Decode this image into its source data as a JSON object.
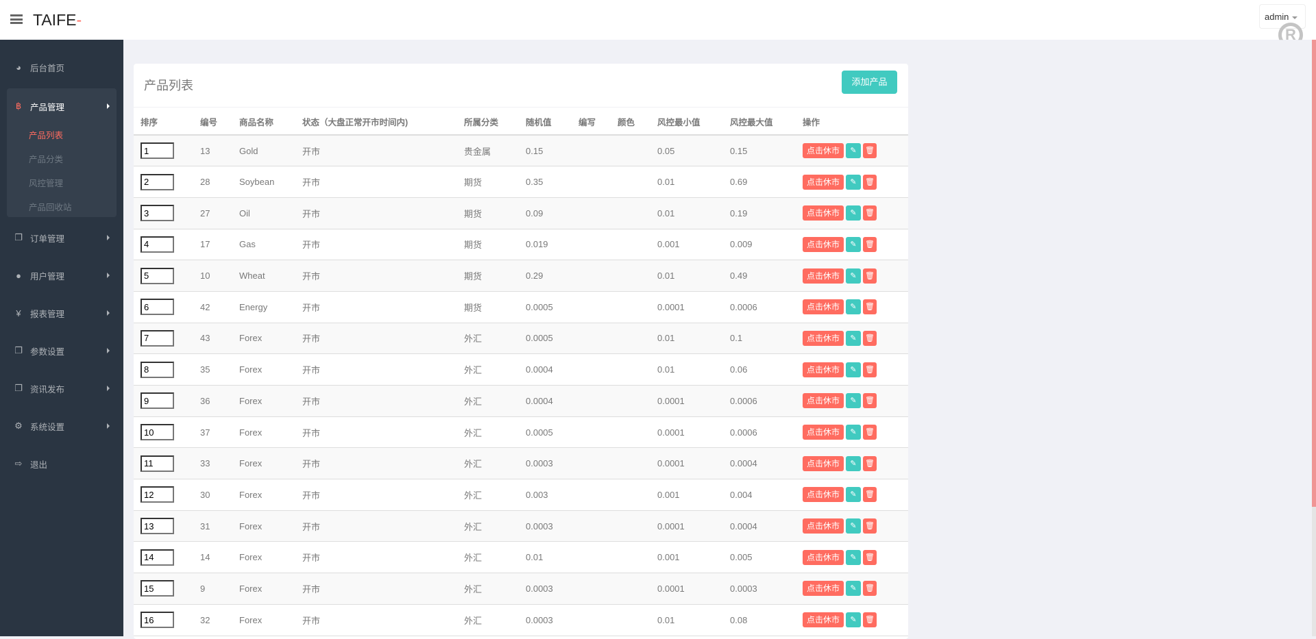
{
  "header": {
    "logo_text": "TAIFE",
    "logo_accent": "-",
    "user": "admin",
    "accent": "#ff6c60"
  },
  "sidebar": {
    "items": [
      {
        "label": "后台首页",
        "icon": "dashboard-icon"
      },
      {
        "label": "产品管理",
        "icon": "bitcoin-icon",
        "expanded": true,
        "children": [
          "产品列表",
          "产品分类",
          "风控管理",
          "产品回收站"
        ],
        "active_child": "产品列表"
      },
      {
        "label": "订单管理",
        "icon": "copy-icon"
      },
      {
        "label": "用户管理",
        "icon": "user-icon"
      },
      {
        "label": "报表管理",
        "icon": "yen-icon"
      },
      {
        "label": "参数设置",
        "icon": "copy-icon"
      },
      {
        "label": "资讯发布",
        "icon": "copy-icon"
      },
      {
        "label": "系统设置",
        "icon": "gears-icon"
      },
      {
        "label": "退出",
        "icon": "sign-out-icon"
      }
    ]
  },
  "main": {
    "title": "产品列表",
    "add_button": "添加产品",
    "columns": [
      "排序",
      "编号",
      "商品名称",
      "状态（大盘正常开市时间内)",
      "所属分类",
      "随机值",
      "编写",
      "颜色",
      "风控最小值",
      "风控最大值",
      "操作"
    ],
    "action_label": "点击休市",
    "rows": [
      [
        "1",
        "13",
        "Gold",
        "开市",
        "贵金属",
        "0.15",
        "",
        "",
        "0.05",
        "0.15"
      ],
      [
        "2",
        "28",
        "Soybean",
        "开市",
        "期货",
        "0.35",
        "",
        "",
        "0.01",
        "0.69"
      ],
      [
        "3",
        "27",
        "Oil",
        "开市",
        "期货",
        "0.09",
        "",
        "",
        "0.01",
        "0.19"
      ],
      [
        "4",
        "17",
        "Gas",
        "开市",
        "期货",
        "0.019",
        "",
        "",
        "0.001",
        "0.009"
      ],
      [
        "5",
        "10",
        "Wheat",
        "开市",
        "期货",
        "0.29",
        "",
        "",
        "0.01",
        "0.49"
      ],
      [
        "6",
        "42",
        "Energy",
        "开市",
        "期货",
        "0.0005",
        "",
        "",
        "0.0001",
        "0.0006"
      ],
      [
        "7",
        "43",
        "Forex",
        "开市",
        "外汇",
        "0.0005",
        "",
        "",
        "0.01",
        "0.1"
      ],
      [
        "8",
        "35",
        "Forex",
        "开市",
        "外汇",
        "0.0004",
        "",
        "",
        "0.01",
        "0.06"
      ],
      [
        "9",
        "36",
        "Forex",
        "开市",
        "外汇",
        "0.0004",
        "",
        "",
        "0.0001",
        "0.0006"
      ],
      [
        "10",
        "37",
        "Forex",
        "开市",
        "外汇",
        "0.0005",
        "",
        "",
        "0.0001",
        "0.0006"
      ],
      [
        "11",
        "33",
        "Forex",
        "开市",
        "外汇",
        "0.0003",
        "",
        "",
        "0.0001",
        "0.0004"
      ],
      [
        "12",
        "30",
        "Forex",
        "开市",
        "外汇",
        "0.003",
        "",
        "",
        "0.001",
        "0.004"
      ],
      [
        "13",
        "31",
        "Forex",
        "开市",
        "外汇",
        "0.0003",
        "",
        "",
        "0.0001",
        "0.0004"
      ],
      [
        "14",
        "14",
        "Forex",
        "开市",
        "外汇",
        "0.01",
        "",
        "",
        "0.001",
        "0.005"
      ],
      [
        "15",
        "9",
        "Forex",
        "开市",
        "外汇",
        "0.0003",
        "",
        "",
        "0.0001",
        "0.0003"
      ],
      [
        "16",
        "32",
        "Forex",
        "开市",
        "外汇",
        "0.0003",
        "",
        "",
        "0.01",
        "0.08"
      ]
    ]
  }
}
